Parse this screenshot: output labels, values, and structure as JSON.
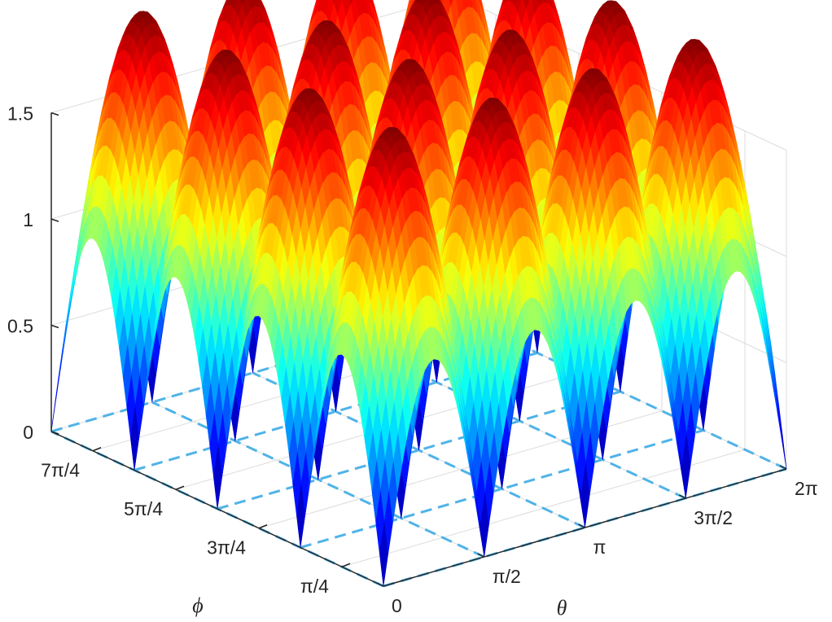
{
  "chart_data": {
    "type": "surface",
    "function": "abs(sin(2*theta)) + abs(sin(2*phi))",
    "colormap": "jet",
    "grid": true,
    "view": "3d",
    "x_axis": {
      "label": "θ",
      "lim": [
        0,
        6.283
      ],
      "ticks": [
        0,
        1.5708,
        3.1416,
        4.7124,
        6.2832
      ],
      "tick_labels": [
        "0",
        "π/2",
        "π",
        "3π/2",
        "2π"
      ]
    },
    "y_axis": {
      "label": "ϕ",
      "lim": [
        0,
        6.283
      ],
      "ticks": [
        0.7854,
        2.3562,
        3.927,
        5.4978
      ],
      "tick_labels": [
        "π/4",
        "3π/4",
        "5π/4",
        "7π/4"
      ]
    },
    "z_axis": {
      "label": "",
      "lim": [
        0,
        1.5
      ],
      "ticks": [
        0,
        0.5,
        1,
        1.5
      ],
      "tick_labels": [
        "0",
        "0.5",
        "1",
        "1.5"
      ]
    },
    "zero_lines": {
      "color": "#4fb3e8",
      "style": "dashed",
      "theta": [
        0,
        1.5708,
        3.1416,
        4.7124,
        6.2832
      ],
      "phi": [
        0,
        1.5708,
        3.1416,
        4.7124,
        6.2832
      ]
    },
    "colors": {
      "axis": "#262626",
      "grid": "#dcdcdc",
      "background": "#ffffff"
    }
  }
}
